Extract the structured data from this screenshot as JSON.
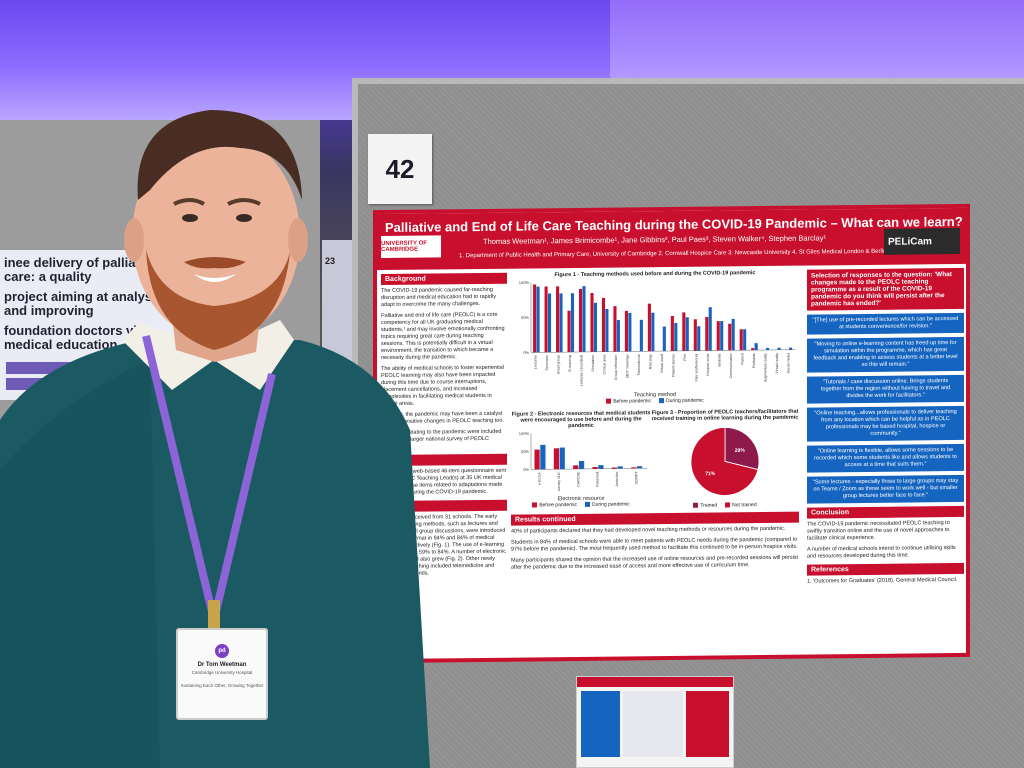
{
  "scene": {
    "booth_number": "42",
    "back_board_number": "23"
  },
  "back_poster": {
    "title_lines": [
      "inee delivery of palliative care: a quality",
      "project aiming at analysing and improving",
      "foundation doctors via medical education"
    ]
  },
  "poster": {
    "title": "Palliative and End of Life Care Teaching during the COVID-19 Pandemic – What can we learn?",
    "authors": "Thomas Weetman¹, James Brimicombe¹, Jane Gibbins², Paul Paes³, Steven Walker⁴, Stephen Barclay¹",
    "affiliations": "1. Department of Public Health and Primary Care, University of Cambridge 2. Cornwall Hospice Care 3. Newcastle University 4. St Giles Medical London & Berlin",
    "logo_left": "UNIVERSITY OF CAMBRIDGE",
    "logo_right": "PELiCam",
    "sections": {
      "background_heading": "Background",
      "background_text": [
        "The COVID-19 pandemic caused far-reaching disruption and medical education had to rapidly adapt to overcome the many challenges.",
        "Palliative and end of life care (PEOLC) is a core competency for all UK graduating medical students,¹ and may involve emotionally confronting topics requiring great care during teaching sessions. This is potentially difficult in a virtual environment, the transition to which became a necessity during the pandemic.",
        "The ability of medical schools to foster experiential PEOLC learning may also have been impacted during this time due to course interruptions, placement cancellations, and increased complexities in facilitating medical students in clinical areas.",
        "However, the pandemic may have been a catalyst for some positive changes in PEOLC teaching too.",
        "Questions relating to the pandemic were included as part of a larger national survey of PEOLC teaching."
      ],
      "method_heading": "Method",
      "method_text": "Anonymised web-based 46-item questionnaire sent to the PEOLC Teaching Lead(s) at 35 UK medical schools. These items related to adaptations made to teaching during the COVID-19 pandemic.",
      "results_heading": "Results",
      "results_text": "Responses received from 31 schools. The early popular teaching methods, such as lectures and seminars/small group discussions, were introduced in an online format in 94% and 84% of medical schools respectively (Fig. 1). The use of e-learning increased from 59% to 84%. A number of electronic resources used also grew (Fig. 2). Other newly introduced teaching included telemedicine and virtual ward rounds.",
      "results_cont_heading": "Results continued",
      "results_cont_text": [
        "40% of participants declared that they had developed novel teaching methods or resources during the pandemic.",
        "Students in 84% of medical schools were able to meet patients with PEOLC needs during the pandemic (compared to 97% before the pandemic). The most frequently used method to facilitate this continued to be in-person hospice visits.",
        "Many participants shared the opinion that the increased use of online resources and pre-recorded sessions will persist after the pandemic due to the increased ease of access and more effective use of curriculum time."
      ],
      "quotes_heading": "Selection of responses to the question: 'What changes made to the PEOLC teaching programme as a result of the COVID-19 pandemic do you think will persist after the pandemic has ended?'",
      "quotes": [
        "\"[The] use of pre-recorded lectures which can be accessed at students convenience/for revision.\"",
        "\"Moving to online e-learning content has freed up time for simulation within the programme, which has great feedback and enabling to assess students at a better level so this will remain.\"",
        "\"Tutorials / case discussion online. Brings students together from the region without having to travel and divides the work for facilitators.\"",
        "\"Online teaching...allows professionals to deliver teaching from any location which can be helpful as in PEOLC professionals may be based hospital, hospice or community.\"",
        "\"Online learning is flexible, allows some sessions to be recorded which some students like and allows students to access at a time that suits them.\"",
        "\"Some lectures - especially those to large groups may stay on Teams / Zoom as these seem to work well - but smaller group lectures better face to face.\""
      ],
      "conclusion_heading": "Conclusion",
      "conclusion_text": [
        "The COVID-19 pandemic necessitated PEOLC teaching to swiftly transition online and the use of novel approaches to facilitate clinical experience.",
        "A number of medical schools intend to continue utilising skills and resources developed during this time."
      ],
      "references_heading": "References",
      "references_text": "1. 'Outcomes for Graduates' (2018). General Medical Council."
    },
    "figures": {
      "fig1_title": "Figure 1 - Teaching methods used before and during the COVID-19 pandemic",
      "fig1_xlabel": "Teaching method",
      "fig1_ylabel": "Percentage of schools using method",
      "fig2_title": "Figure 2 - Electronic resources that medical students were encouraged to use before and during the pandemic",
      "fig2_xlabel": "Electronic resource",
      "fig2_ylabel": "Percentage of medical schools",
      "fig3_title": "Figure 3 - Proportion of PEOLC teachers/facilitators that received training in online learning during the pandemic",
      "legend_before": "Before pandemic",
      "legend_during": "During pandemic",
      "legend_trained": "Trained",
      "legend_not_trained": "Not trained"
    }
  },
  "chart_data": [
    {
      "type": "bar",
      "title": "Figure 1 - Teaching methods used before and during the COVID-19 pandemic",
      "xlabel": "Teaching method",
      "ylabel": "Percentage of schools using method",
      "ylim": [
        0,
        100
      ],
      "categories": [
        "Lectures",
        "Seminars",
        "Small group",
        "E-learning",
        "Lectures (recorded)",
        "Simulation",
        "Clinical area",
        "Group reflection",
        "MDT meetings",
        "Telemedicine",
        "Role play",
        "Virtual ward",
        "Patient stories",
        "Film",
        "Inter-professional",
        "Hospice visits",
        "Bedside",
        "Communication",
        "Patient",
        "Podcasts",
        "Augmented reality",
        "Virtual reality",
        "Social media"
      ],
      "series": [
        {
          "name": "Before pandemic",
          "values": [
            97,
            94,
            94,
            59,
            90,
            84,
            77,
            65,
            58,
            0,
            68,
            0,
            50,
            55,
            45,
            48,
            42,
            38,
            30,
            3,
            0,
            0,
            0
          ]
        },
        {
          "name": "During pandemic",
          "values": [
            94,
            84,
            84,
            84,
            94,
            70,
            61,
            45,
            55,
            45,
            55,
            35,
            40,
            48,
            35,
            62,
            42,
            45,
            30,
            10,
            3,
            3,
            3
          ]
        }
      ],
      "colors": {
        "Before pandemic": "#c8102e",
        "During pandemic": "#1565c0"
      },
      "legend": "bottom"
    },
    {
      "type": "bar",
      "title": "Figure 2 - Electronic resources that medical students were encouraged to use before and during the pandemic",
      "xlabel": "Electronic resource",
      "ylabel": "Percentage of medical schools",
      "ylim": [
        0,
        100
      ],
      "categories": [
        "e-ELCA",
        "University VLE",
        "CAPCSE",
        "Passmed",
        "Juniordoc",
        "SCRIPT"
      ],
      "series": [
        {
          "name": "Before pandemic",
          "values": [
            55,
            58,
            10,
            5,
            3,
            3
          ]
        },
        {
          "name": "During pandemic",
          "values": [
            68,
            60,
            22,
            10,
            6,
            6
          ]
        }
      ],
      "colors": {
        "Before pandemic": "#c8102e",
        "During pandemic": "#1565c0"
      },
      "legend": "bottom"
    },
    {
      "type": "pie",
      "title": "Figure 3 - Proportion of PEOLC teachers/facilitators that received training in online learning during the pandemic",
      "categories": [
        "Trained",
        "Not trained"
      ],
      "values": [
        29,
        71
      ],
      "colors": {
        "Trained": "#8e1a4c",
        "Not trained": "#c8102e"
      },
      "labels": [
        "29%",
        "71%"
      ],
      "legend": "bottom"
    }
  ],
  "badge": {
    "logo": "pd",
    "name": "Dr Tom Weetman",
    "role": "Cambridge University Hospital",
    "tagline": "Sustaining Each Other, Growing Together"
  }
}
